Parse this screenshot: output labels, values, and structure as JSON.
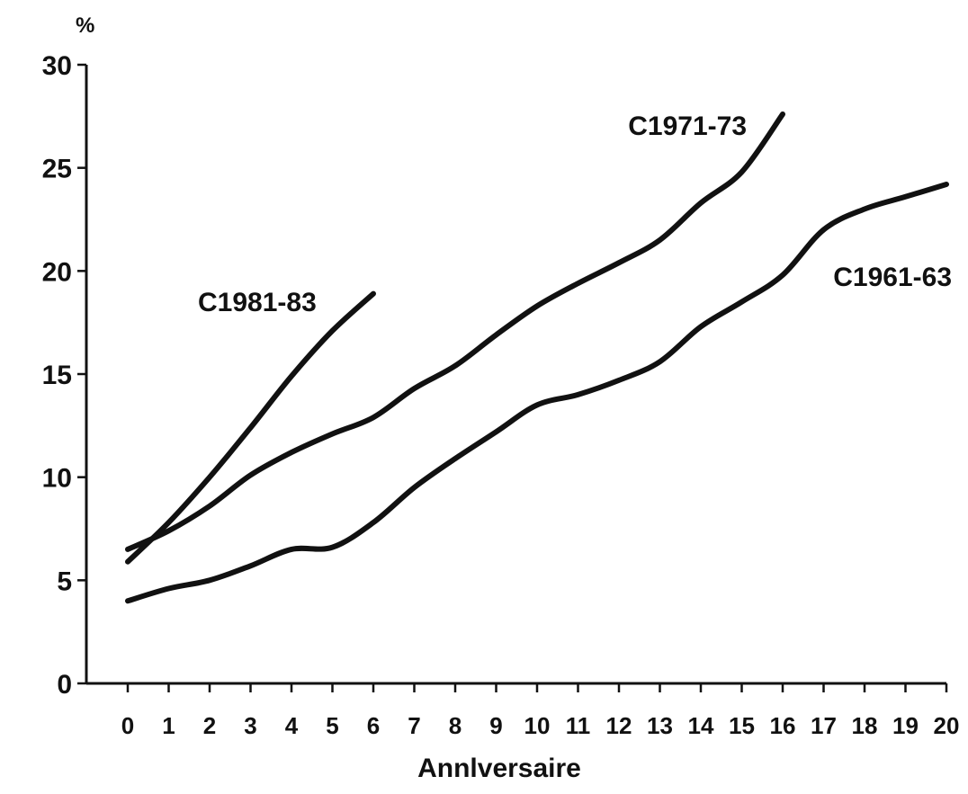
{
  "chart_data": {
    "type": "line",
    "title": "",
    "ylabel": "%",
    "xlabel": "Annlversaire",
    "xlim": [
      0,
      20
    ],
    "ylim": [
      0,
      30
    ],
    "yticks": [
      0,
      5,
      10,
      15,
      20,
      25,
      30
    ],
    "xticks": [
      0,
      1,
      2,
      3,
      4,
      5,
      6,
      7,
      8,
      9,
      10,
      11,
      12,
      13,
      14,
      15,
      16,
      17,
      18,
      19,
      20
    ],
    "grid": false,
    "legend": "none",
    "series": [
      {
        "name": "C1981-83",
        "x": [
          0,
          1,
          2,
          3,
          4,
          5,
          6
        ],
        "y": [
          5.9,
          7.8,
          10.0,
          12.4,
          14.9,
          17.1,
          18.9
        ]
      },
      {
        "name": "C1971-73",
        "x": [
          0,
          1,
          2,
          3,
          4,
          5,
          6,
          7,
          8,
          9,
          10,
          11,
          12,
          13,
          14,
          15,
          16
        ],
        "y": [
          6.5,
          7.4,
          8.6,
          10.1,
          11.2,
          12.1,
          12.9,
          14.3,
          15.4,
          16.9,
          18.3,
          19.4,
          20.4,
          21.5,
          23.3,
          24.8,
          27.6
        ]
      },
      {
        "name": "C1961-63",
        "x": [
          0,
          1,
          2,
          3,
          4,
          5,
          6,
          7,
          8,
          9,
          10,
          11,
          12,
          13,
          14,
          15,
          16,
          17,
          18,
          19,
          20
        ],
        "y": [
          4.0,
          4.6,
          5.0,
          5.7,
          6.5,
          6.6,
          7.8,
          9.5,
          10.9,
          12.2,
          13.5,
          14.0,
          14.7,
          15.6,
          17.3,
          18.5,
          19.8,
          22.0,
          23.0,
          23.6,
          24.2
        ]
      }
    ],
    "series_labels": [
      "C1981-83",
      "C1971-73",
      "C1961-63"
    ]
  }
}
